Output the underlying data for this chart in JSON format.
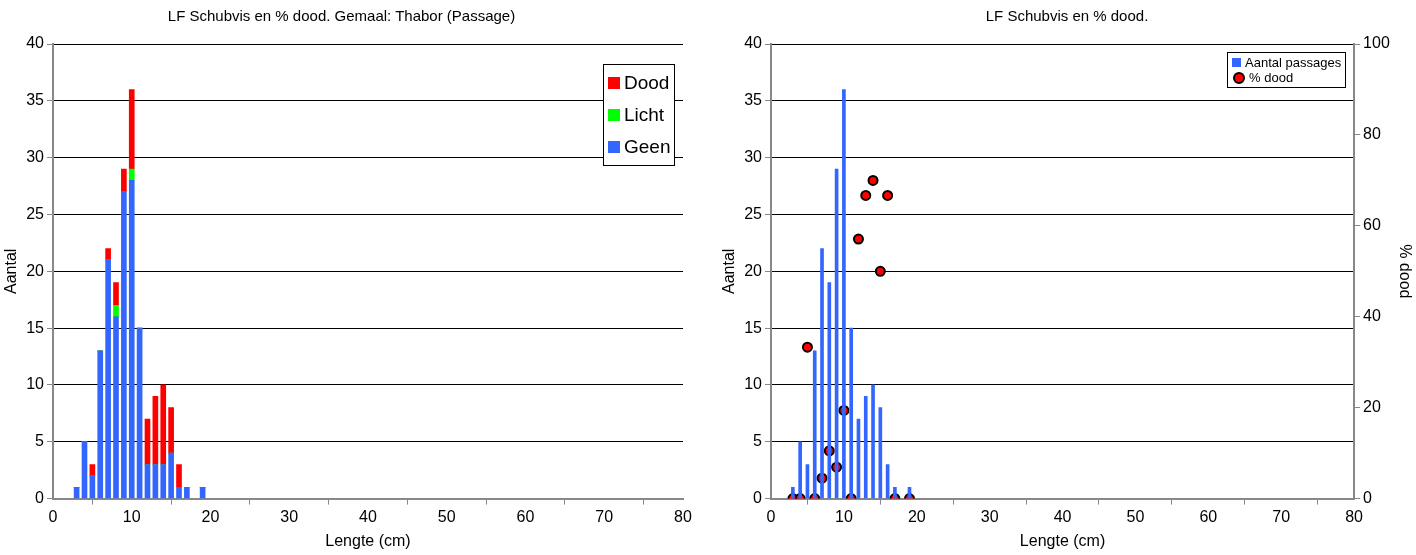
{
  "chart_data": [
    {
      "type": "bar",
      "title": "LF Schubvis en % dood. Gemaal: Thabor (Passage)",
      "xlabel": "Lengte (cm)",
      "ylabel": "Aantal",
      "stacked": true,
      "x": [
        3,
        4,
        5,
        6,
        7,
        8,
        9,
        10,
        11,
        12,
        13,
        14,
        15,
        16,
        17,
        19
      ],
      "series": [
        {
          "name": "Geen",
          "color": "#3366ff",
          "values": [
            1,
            5,
            2,
            13,
            21,
            16,
            27,
            28,
            15,
            3,
            3,
            3,
            4,
            1,
            1,
            1
          ]
        },
        {
          "name": "Licht",
          "color": "#00ff00",
          "values": [
            0,
            0,
            0,
            0,
            0,
            1,
            0,
            1,
            0,
            0,
            0,
            0,
            0,
            0,
            0,
            0
          ]
        },
        {
          "name": "Dood",
          "color": "#ff0000",
          "values": [
            0,
            0,
            1,
            0,
            1,
            2,
            2,
            7,
            0,
            4,
            6,
            7,
            4,
            2,
            0,
            0
          ]
        }
      ],
      "xlim": [
        0,
        80
      ],
      "xticks": [
        0,
        10,
        20,
        30,
        40,
        50,
        60,
        70,
        80
      ],
      "ylim": [
        0,
        40
      ],
      "yticks": [
        0,
        5,
        10,
        15,
        20,
        25,
        30,
        35,
        40
      ],
      "grid": "y",
      "legend": "top right"
    },
    {
      "type": "bar",
      "title": "LF Schubvis en % dood.",
      "xlabel": "Lengte (cm)",
      "ylabel": "Aantal",
      "y2label": "% dood",
      "x": [
        3,
        4,
        5,
        6,
        7,
        8,
        9,
        10,
        11,
        12,
        13,
        14,
        15,
        16,
        17,
        19
      ],
      "series": [
        {
          "name": "Aantal passages",
          "color": "#3366ff",
          "values": [
            1,
            5,
            3,
            13,
            22,
            19,
            29,
            36,
            15,
            7,
            9,
            10,
            8,
            3,
            1,
            1
          ]
        },
        {
          "name": "% dood",
          "type": "scatter",
          "axis": "y2",
          "color": "#ff0000",
          "values": [
            0,
            0,
            33.3,
            0,
            4.5,
            10.5,
            6.9,
            19.4,
            0,
            57.1,
            66.7,
            70,
            50,
            66.7,
            0,
            0
          ]
        }
      ],
      "xlim": [
        0,
        80
      ],
      "xticks": [
        0,
        10,
        20,
        30,
        40,
        50,
        60,
        70,
        80
      ],
      "ylim": [
        0,
        40
      ],
      "yticks": [
        0,
        5,
        10,
        15,
        20,
        25,
        30,
        35,
        40
      ],
      "y2lim": [
        0,
        100
      ],
      "y2ticks": [
        0,
        20,
        40,
        60,
        80,
        100
      ],
      "grid": "y",
      "legend": "top right",
      "marker": "circle"
    }
  ]
}
